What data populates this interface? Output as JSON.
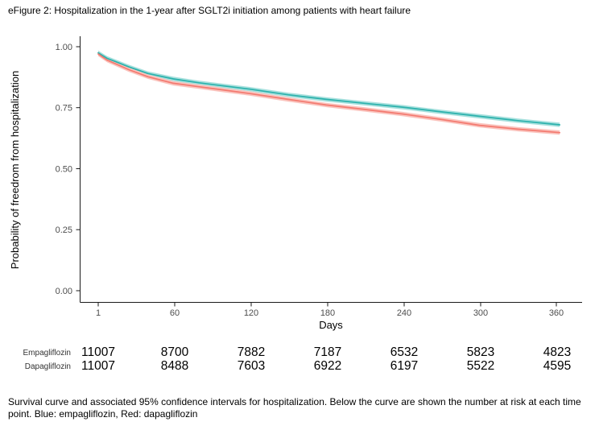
{
  "title": "eFigure 2: Hospitalization in the 1-year after SGLT2i initiation among patients with heart failure",
  "chart_data": {
    "type": "line",
    "subtype": "kaplan-meier-survival",
    "xlabel": "Days",
    "ylabel": "Probability of freedrom from hospitalization",
    "xlim": [
      1,
      368
    ],
    "ylim": [
      0.0,
      1.0
    ],
    "x_ticks": [
      "1",
      "60",
      "120",
      "180",
      "240",
      "300",
      "360"
    ],
    "y_ticks": [
      "1.00",
      "0.75",
      "0.50",
      "0.25",
      "0.00"
    ],
    "grid": false,
    "legend_position": "none",
    "series": [
      {
        "name": "Empagliflozin",
        "color": "#2bb1ac",
        "ci_color": "#a6e0dd",
        "ci_halfwidth": 0.009,
        "x": [
          1,
          8,
          15,
          25,
          40,
          60,
          80,
          100,
          120,
          150,
          180,
          210,
          240,
          270,
          300,
          330,
          363
        ],
        "y": [
          0.975,
          0.952,
          0.938,
          0.917,
          0.89,
          0.868,
          0.852,
          0.839,
          0.826,
          0.803,
          0.784,
          0.768,
          0.752,
          0.733,
          0.715,
          0.697,
          0.68
        ]
      },
      {
        "name": "Dapagliflozin",
        "color": "#f3796f",
        "ci_color": "#fac3bd",
        "ci_halfwidth": 0.009,
        "x": [
          1,
          8,
          15,
          25,
          40,
          60,
          80,
          100,
          120,
          150,
          180,
          210,
          240,
          270,
          300,
          330,
          363
        ],
        "y": [
          0.97,
          0.945,
          0.929,
          0.906,
          0.877,
          0.85,
          0.836,
          0.822,
          0.808,
          0.784,
          0.761,
          0.743,
          0.724,
          0.702,
          0.678,
          0.662,
          0.648
        ]
      }
    ]
  },
  "risk_table": {
    "rows": [
      {
        "label": "Empagliflozin",
        "values": [
          "11007",
          "8700",
          "7882",
          "7187",
          "6532",
          "5823",
          "4823"
        ]
      },
      {
        "label": "Dapagliflozin",
        "values": [
          "11007",
          "8488",
          "7603",
          "6922",
          "6197",
          "5522",
          "4595"
        ]
      }
    ]
  },
  "caption": "Survival curve and associated 95% confidence intervals for hospitalization. Below the curve are shown the number at risk at each time point. Blue: empagliflozin, Red: dapagliflozin"
}
